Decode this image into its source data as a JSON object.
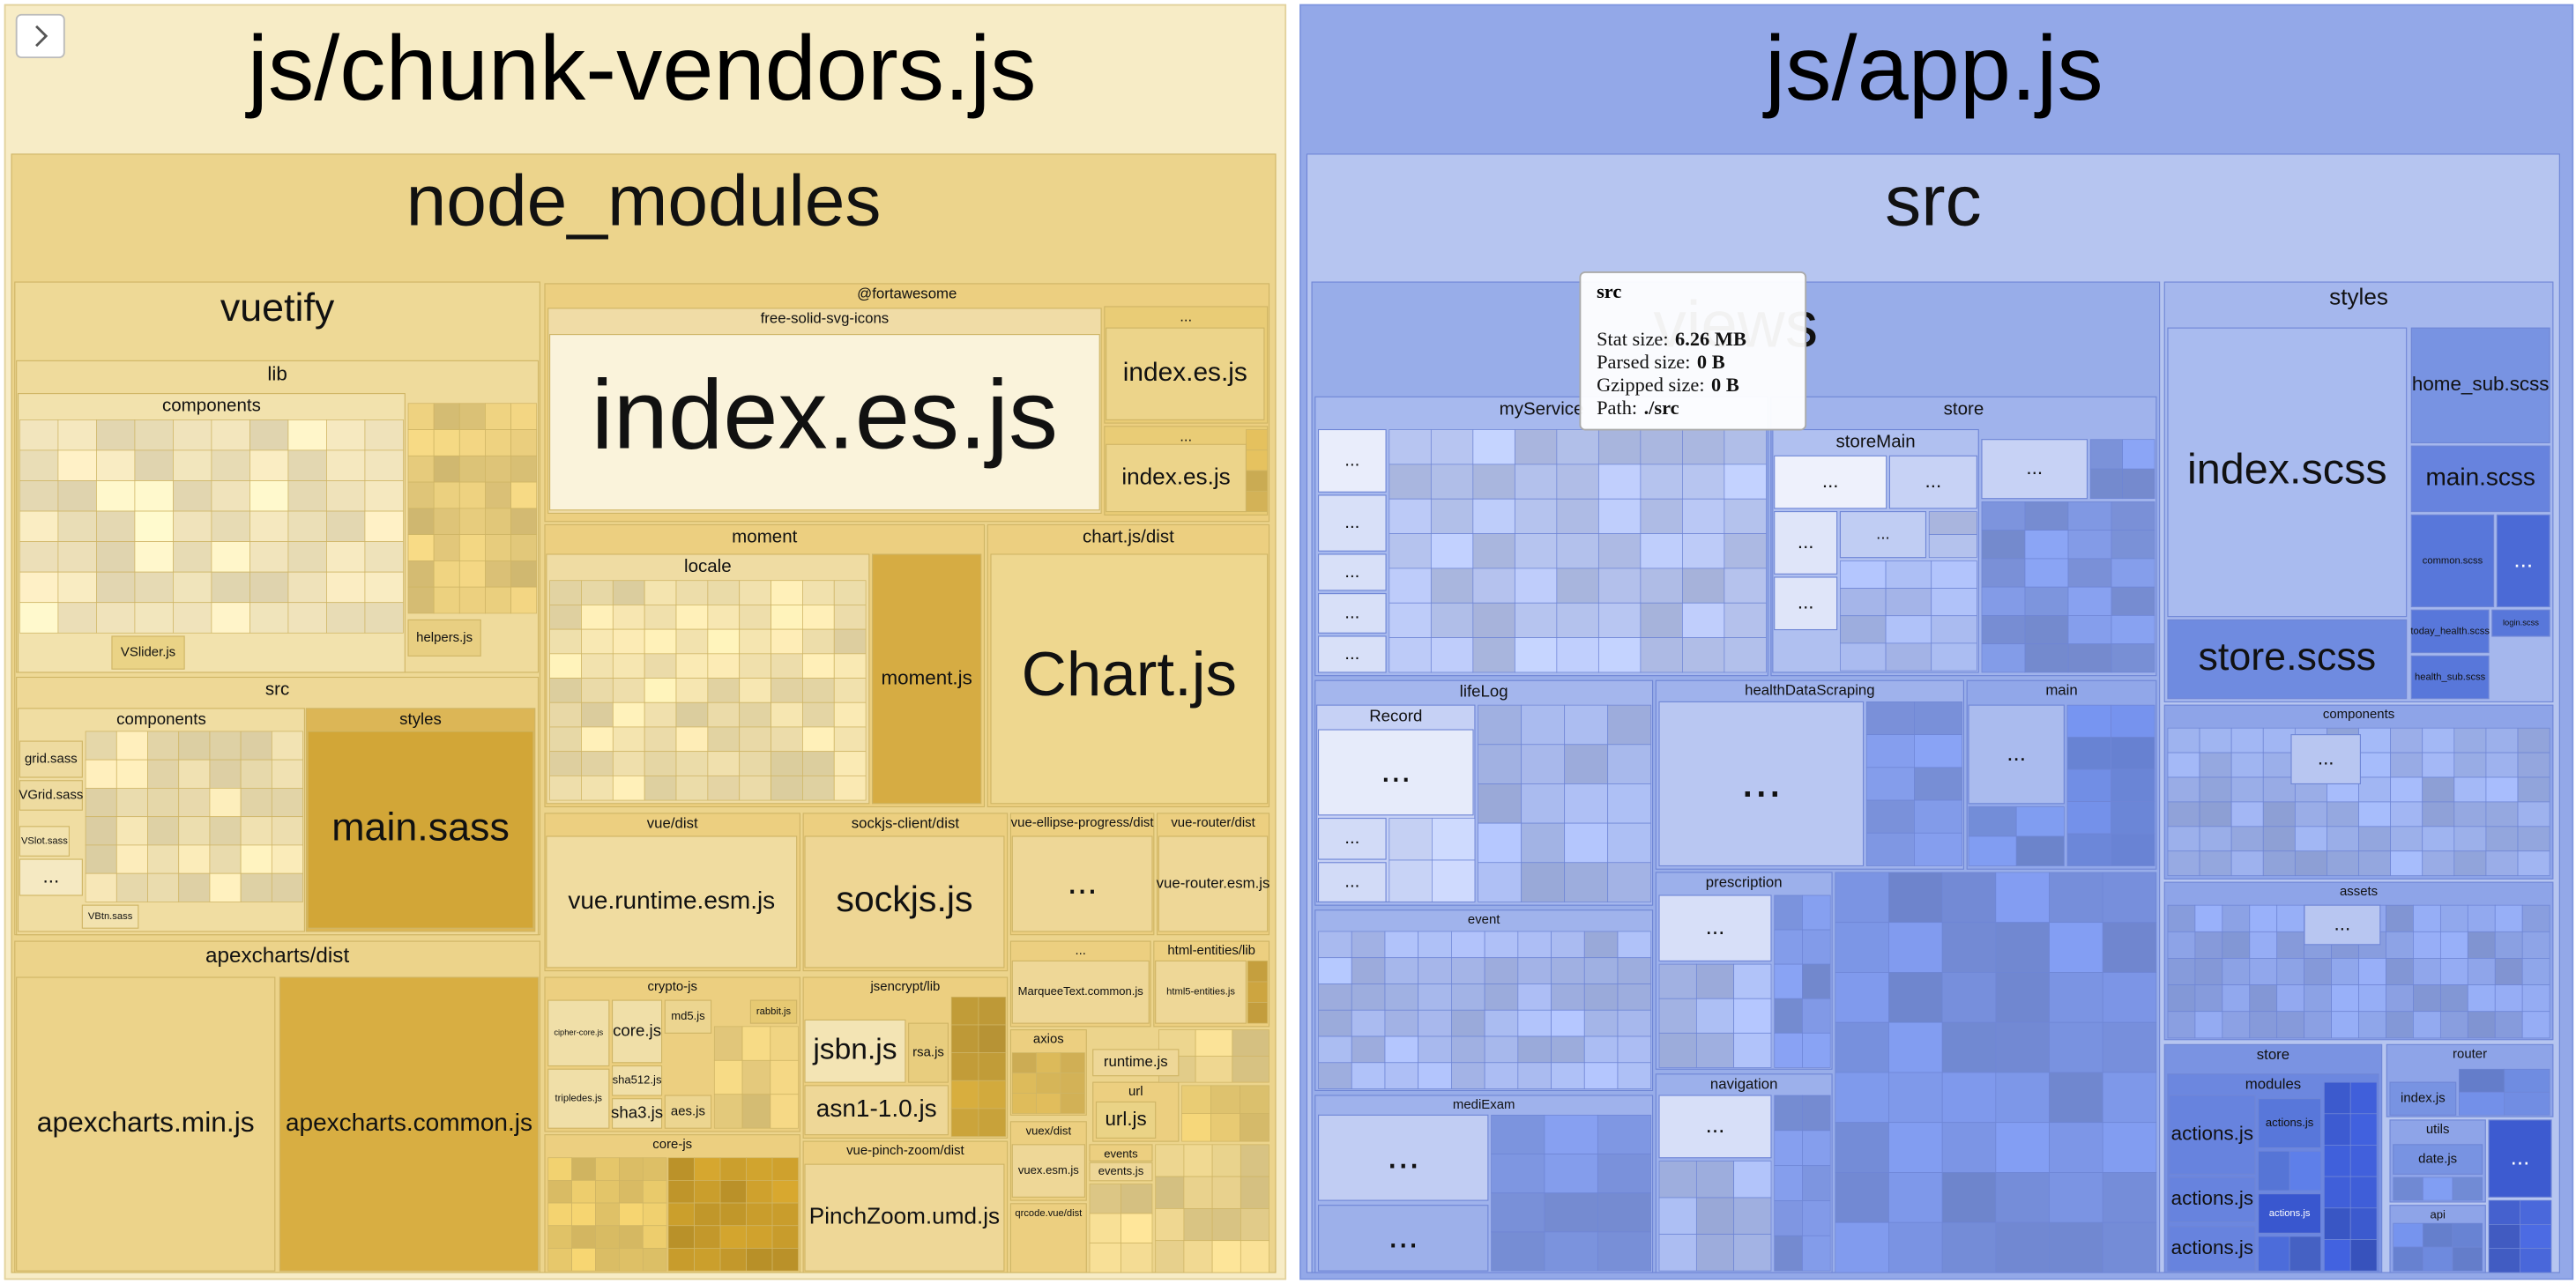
{
  "chunks": [
    {
      "label": "js/chunk-vendors.js",
      "tiles": [
        "node_modules",
        "vuetify",
        "lib",
        "components",
        "helpers.js",
        "VSlider.js",
        "src",
        "components",
        "styles",
        "main.sass",
        "grid.sass",
        "VGrid.sass",
        "VSlot.sass",
        "VBtn.sass",
        "...",
        "apexcharts/dist",
        "apexcharts.min.js",
        "apexcharts.common.js",
        "@fortawesome",
        "free-solid-svg-icons",
        "index.es.js",
        "...",
        "index.es.js",
        "...",
        "index.es.js",
        "moment",
        "locale",
        "moment.js",
        "chart.js/dist",
        "Chart.js",
        "vue/dist",
        "vue.runtime.esm.js",
        "sockjs-client/dist",
        "sockjs.js",
        "vue-ellipse-progress/dist",
        "...",
        "vue-router/dist",
        "vue-router.esm.js",
        "...",
        "MarqueeText.common.js",
        "html-entities/lib",
        "html5-entities.js",
        "crypto-js",
        "cipher-core.js",
        "tripledes.js",
        "core.js",
        "sha512.js",
        "sha3.js",
        "md5.js",
        "aes.js",
        "rabbit.js",
        "jsencrypt/lib",
        "jsbn.js",
        "rsa.js",
        "asn1-1.0.js",
        "axios",
        "runtime.js",
        "url",
        "url.js",
        "core-js",
        "vue-pinch-zoom/dist",
        "PinchZoom.umd.js",
        "vuex/dist",
        "vuex.esm.js",
        "qrcode.vue/dist",
        "events",
        "events.js"
      ]
    },
    {
      "label": "js/app.js",
      "tiles": [
        "src",
        "views",
        "myService",
        "...",
        "...",
        "...",
        "...",
        "...",
        "store",
        "storeMain",
        "...",
        "...",
        "...",
        "...",
        "...",
        "...",
        "lifeLog",
        "Record",
        "...",
        "...",
        "...",
        "healthDataScraping",
        "...",
        "main",
        "...",
        "event",
        "prescription",
        "...",
        "navigation",
        "...",
        "mediExam",
        "...",
        "...",
        "styles",
        "index.scss",
        "store.scss",
        "home_sub.scss",
        "main.scss",
        "common.scss",
        "...",
        "today_health.scss",
        "login.scss",
        "health_sub.scss",
        "components",
        "...",
        "assets",
        "...",
        "store",
        "modules",
        "actions.js",
        "actions.js",
        "actions.js",
        "actions.js",
        "actions.js",
        "router",
        "index.js",
        "utils",
        "date.js",
        "api",
        "..."
      ]
    }
  ],
  "tooltip": {
    "title": "src",
    "rows": [
      {
        "label": "Stat size:",
        "value": "6.26 MB"
      },
      {
        "label": "Parsed size:",
        "value": "0 B"
      },
      {
        "label": "Gzipped size:",
        "value": "0 B"
      },
      {
        "label": "Path:",
        "value": "./src"
      }
    ]
  }
}
